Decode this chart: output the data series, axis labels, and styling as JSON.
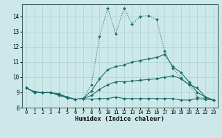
{
  "title": "",
  "xlabel": "Humidex (Indice chaleur)",
  "background_color": "#cce8e8",
  "grid_color": "#aad0d0",
  "line_color": "#1a6e6a",
  "xlim": [
    -0.5,
    23.5
  ],
  "ylim": [
    8.0,
    14.8
  ],
  "yticks": [
    8,
    9,
    10,
    11,
    12,
    13,
    14
  ],
  "xticks": [
    0,
    1,
    2,
    3,
    4,
    5,
    6,
    7,
    8,
    9,
    10,
    11,
    12,
    13,
    14,
    15,
    16,
    17,
    18,
    19,
    20,
    21,
    22,
    23
  ],
  "series": [
    {
      "x": [
        0,
        1,
        2,
        3,
        4,
        5,
        6,
        7,
        8,
        9,
        10,
        11,
        12,
        13,
        14,
        15,
        16,
        17,
        18,
        19,
        20,
        21,
        22,
        23
      ],
      "y": [
        9.3,
        9.0,
        9.0,
        9.0,
        8.8,
        8.65,
        8.55,
        8.6,
        8.55,
        8.6,
        8.6,
        8.7,
        8.6,
        8.6,
        8.6,
        8.6,
        8.6,
        8.6,
        8.6,
        8.5,
        8.5,
        8.6,
        8.55,
        8.5
      ],
      "dotted": false,
      "marker": true
    },
    {
      "x": [
        0,
        1,
        2,
        3,
        4,
        5,
        6,
        7,
        8,
        9,
        10,
        11,
        12,
        13,
        14,
        15,
        16,
        17,
        18,
        19,
        20,
        21,
        22,
        23
      ],
      "y": [
        9.3,
        9.0,
        9.0,
        9.0,
        8.85,
        8.7,
        8.55,
        8.6,
        8.8,
        9.2,
        9.5,
        9.7,
        9.7,
        9.75,
        9.8,
        9.85,
        9.9,
        10.0,
        10.1,
        9.9,
        9.5,
        9.3,
        8.7,
        8.5
      ],
      "dotted": false,
      "marker": true
    },
    {
      "x": [
        0,
        1,
        2,
        3,
        4,
        5,
        6,
        7,
        8,
        9,
        10,
        11,
        12,
        13,
        14,
        15,
        16,
        17,
        18,
        19,
        20,
        21,
        22,
        23
      ],
      "y": [
        9.3,
        9.05,
        9.0,
        9.0,
        8.9,
        8.7,
        8.55,
        8.6,
        9.1,
        9.9,
        10.5,
        10.7,
        10.8,
        11.0,
        11.1,
        11.2,
        11.3,
        11.5,
        10.7,
        10.3,
        9.7,
        9.0,
        8.7,
        8.5
      ],
      "dotted": false,
      "marker": true
    },
    {
      "x": [
        0,
        1,
        2,
        3,
        4,
        5,
        6,
        7,
        8,
        9,
        10,
        11,
        12,
        13,
        14,
        15,
        16,
        17,
        18,
        19,
        20,
        21,
        22,
        23
      ],
      "y": [
        9.3,
        9.05,
        9.0,
        9.0,
        8.9,
        8.7,
        8.55,
        8.6,
        9.5,
        12.65,
        14.55,
        12.85,
        14.55,
        13.5,
        14.0,
        14.05,
        13.8,
        11.7,
        10.6,
        9.95,
        9.55,
        8.7,
        8.6,
        8.5
      ],
      "dotted": true,
      "marker": true
    }
  ]
}
